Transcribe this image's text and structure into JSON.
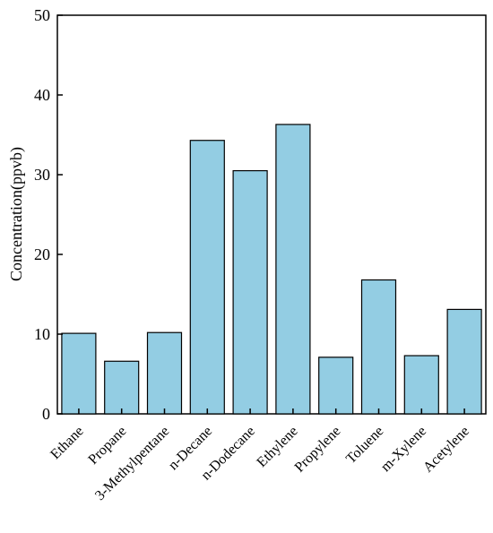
{
  "chart_data": {
    "type": "bar",
    "categories": [
      "Ethane",
      "Propane",
      "3-Methylpentane",
      "n-Decane",
      "n-Dodecane",
      "Ethylene",
      "Propylene",
      "Toluene",
      "m-Xylene",
      "Acetylene"
    ],
    "values": [
      10.1,
      6.6,
      10.2,
      34.3,
      30.5,
      36.3,
      7.1,
      16.8,
      7.3,
      13.1
    ],
    "xlabel": "",
    "ylabel": "Concentration(ppvb)",
    "ylim": [
      0,
      50
    ],
    "yticks": [
      "0",
      "10",
      "20",
      "30",
      "40",
      "50"
    ],
    "grid": false,
    "bar_color": "#93cde3",
    "bar_edge_color": "#000000"
  }
}
